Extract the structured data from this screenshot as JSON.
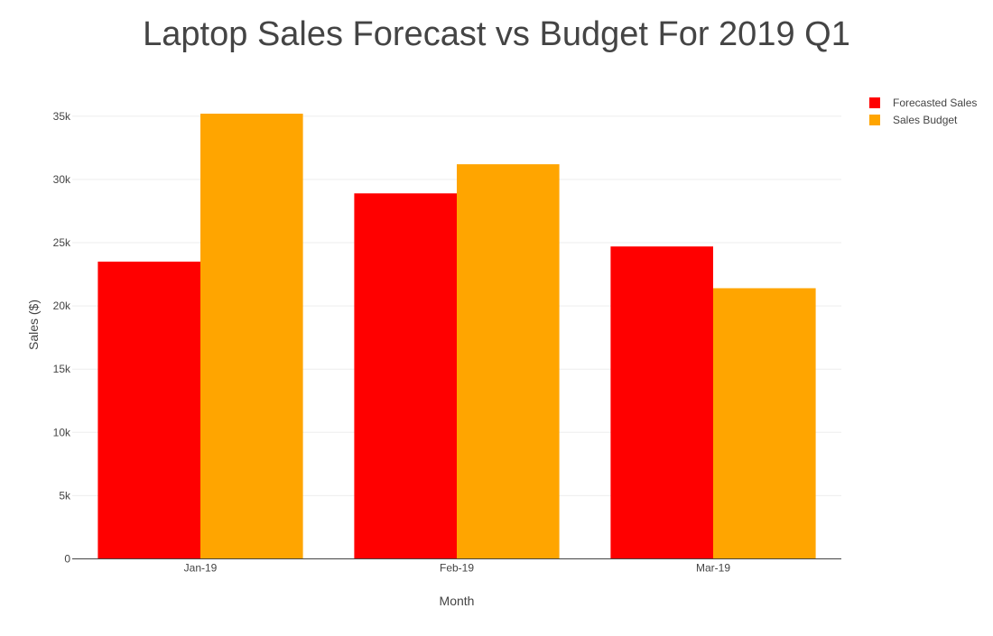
{
  "chart_data": {
    "type": "bar",
    "title": "Laptop Sales Forecast vs Budget For 2019 Q1",
    "xlabel": "Month",
    "ylabel": "Sales ($)",
    "categories": [
      "Jan-19",
      "Feb-19",
      "Mar-19"
    ],
    "series": [
      {
        "name": "Forecasted Sales",
        "color": "#ff0000",
        "values": [
          23500,
          28900,
          24700
        ]
      },
      {
        "name": "Sales Budget",
        "color": "#ffa500",
        "values": [
          35200,
          31200,
          21400
        ]
      }
    ],
    "ylim": [
      0,
      35200
    ],
    "yticks": [
      0,
      5000,
      10000,
      15000,
      20000,
      25000,
      30000,
      35000
    ],
    "ytick_labels": [
      "0",
      "5k",
      "10k",
      "15k",
      "20k",
      "25k",
      "30k",
      "35k"
    ],
    "grid": true,
    "legend_position": "top-right"
  }
}
